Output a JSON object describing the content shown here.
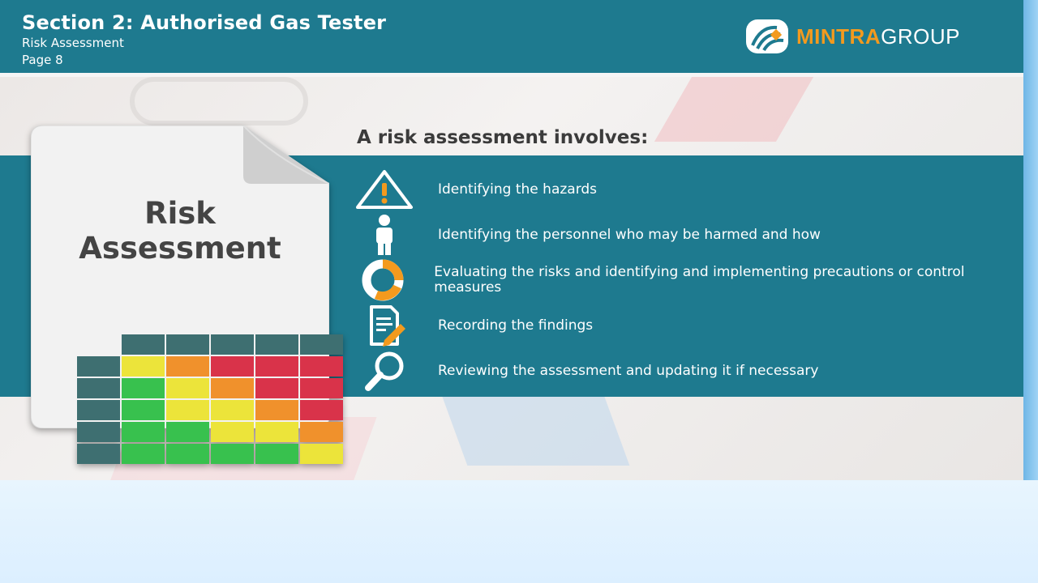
{
  "header": {
    "title": "Section 2: Authorised Gas Tester",
    "subtitle": "Risk Assessment",
    "page": "Page 8"
  },
  "logo": {
    "brand_primary": "MINTRA",
    "brand_secondary": "GROUP",
    "icon": "mintra-logo-mark"
  },
  "colors": {
    "header": "#1e7a8f",
    "accent": "#f39a1e",
    "matrix_header": "#3e6f71",
    "green": "#38c14e",
    "yellow": "#ece43a",
    "orange": "#f0912c",
    "red": "#d9334a"
  },
  "slide": {
    "heading": "A risk assessment involves:",
    "card": {
      "line1": "Risk",
      "line2": "Assessment"
    },
    "items": [
      {
        "icon": "warning-triangle-icon",
        "text": "Identifying the hazards"
      },
      {
        "icon": "person-icon",
        "text": "Identifying the personnel who may be harmed and how"
      },
      {
        "icon": "cycle-arrows-icon",
        "text": "Evaluating the risks and identifying and implementing precautions or control measures"
      },
      {
        "icon": "document-pen-icon",
        "text": "Recording the findings"
      },
      {
        "icon": "magnifier-icon",
        "text": "Reviewing the assessment and updating it if necessary"
      }
    ],
    "matrix": {
      "rows": [
        [
          "yellow",
          "orange",
          "red",
          "red",
          "red"
        ],
        [
          "green",
          "yellow",
          "orange",
          "red",
          "red"
        ],
        [
          "green",
          "yellow",
          "yellow",
          "orange",
          "red"
        ],
        [
          "green",
          "green",
          "yellow",
          "yellow",
          "orange"
        ],
        [
          "green",
          "green",
          "green",
          "green",
          "yellow"
        ]
      ]
    }
  }
}
